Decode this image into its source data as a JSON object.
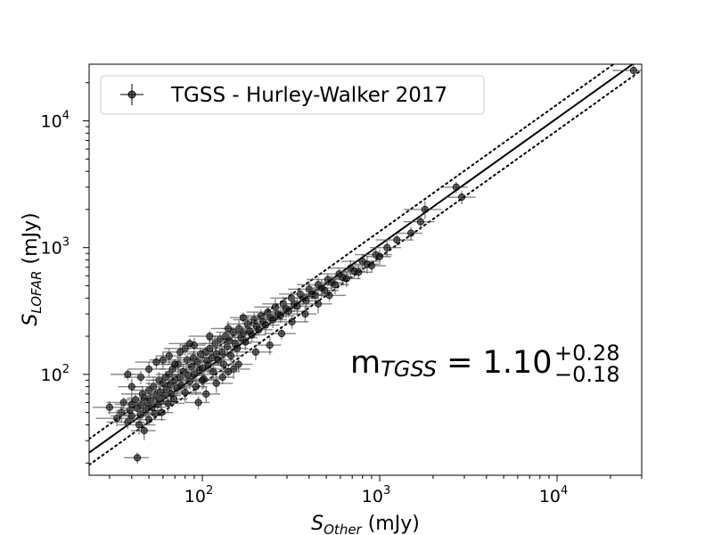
{
  "chart_data": {
    "type": "scatter",
    "xscale": "log",
    "yscale": "log",
    "xlim": [
      23,
      30000
    ],
    "ylim": [
      16,
      28000
    ],
    "xlabel": {
      "main": "S",
      "sub": "Other",
      "unit": " (mJy)"
    },
    "ylabel": {
      "main": "S",
      "sub": "LOFAR",
      "unit": " (mJy)"
    },
    "x_ticks": [
      {
        "base": "10",
        "exp": "2",
        "value": 100
      },
      {
        "base": "10",
        "exp": "3",
        "value": 1000
      },
      {
        "base": "10",
        "exp": "4",
        "value": 10000
      }
    ],
    "y_ticks": [
      {
        "base": "10",
        "exp": "2",
        "value": 100
      },
      {
        "base": "10",
        "exp": "3",
        "value": 1000
      },
      {
        "base": "10",
        "exp": "4",
        "value": 10000
      }
    ],
    "legend": {
      "position": "upper-left",
      "label": "TGSS - Hurley-Walker 2017"
    },
    "annotation": {
      "main": "m",
      "sub": "TGSS",
      "eq": " = 1.10",
      "sup": "+0.28",
      "subscr": "−0.18"
    },
    "fit_lines": [
      {
        "style": "solid",
        "slope": 1.1
      },
      {
        "style": "dotted",
        "slope": 1.28
      },
      {
        "style": "dotted",
        "slope": 0.92
      }
    ],
    "series": [
      {
        "marker_color": "#000000",
        "points": [
          [
            43,
            22
          ],
          [
            30,
            55
          ],
          [
            33,
            45
          ],
          [
            35,
            50
          ],
          [
            36,
            60
          ],
          [
            38,
            42
          ],
          [
            39,
            52
          ],
          [
            40,
            58
          ],
          [
            40,
            47
          ],
          [
            42,
            63
          ],
          [
            43,
            54
          ],
          [
            44,
            40
          ],
          [
            45,
            57
          ],
          [
            45,
            48
          ],
          [
            46,
            70
          ],
          [
            47,
            36
          ],
          [
            47,
            65
          ],
          [
            48,
            52
          ],
          [
            49,
            59
          ],
          [
            50,
            75
          ],
          [
            50,
            44
          ],
          [
            51,
            62
          ],
          [
            52,
            55
          ],
          [
            53,
            80
          ],
          [
            54,
            49
          ],
          [
            55,
            67
          ],
          [
            56,
            58
          ],
          [
            57,
            90
          ],
          [
            58,
            72
          ],
          [
            58,
            61
          ],
          [
            59,
            50
          ],
          [
            60,
            85
          ],
          [
            61,
            68
          ],
          [
            62,
            95
          ],
          [
            63,
            76
          ],
          [
            64,
            59
          ],
          [
            65,
            100
          ],
          [
            66,
            83
          ],
          [
            67,
            70
          ],
          [
            68,
            110
          ],
          [
            69,
            64
          ],
          [
            70,
            90
          ],
          [
            72,
            78
          ],
          [
            73,
            120
          ],
          [
            75,
            95
          ],
          [
            76,
            82
          ],
          [
            78,
            105
          ],
          [
            80,
            72
          ],
          [
            82,
            130
          ],
          [
            83,
            98
          ],
          [
            85,
            88
          ],
          [
            87,
            115
          ],
          [
            89,
            135
          ],
          [
            90,
            100
          ],
          [
            92,
            80
          ],
          [
            94,
            125
          ],
          [
            96,
            108
          ],
          [
            98,
            145
          ],
          [
            100,
            112
          ],
          [
            102,
            92
          ],
          [
            104,
            150
          ],
          [
            106,
            128
          ],
          [
            108,
            118
          ],
          [
            110,
            160
          ],
          [
            113,
            135
          ],
          [
            115,
            105
          ],
          [
            118,
            175
          ],
          [
            120,
            145
          ],
          [
            123,
            130
          ],
          [
            126,
            190
          ],
          [
            129,
            150
          ],
          [
            132,
            120
          ],
          [
            135,
            200
          ],
          [
            138,
            165
          ],
          [
            142,
            185
          ],
          [
            145,
            140
          ],
          [
            149,
            215
          ],
          [
            153,
            175
          ],
          [
            157,
            160
          ],
          [
            161,
            230
          ],
          [
            165,
            195
          ],
          [
            170,
            210
          ],
          [
            175,
            180
          ],
          [
            180,
            250
          ],
          [
            185,
            220
          ],
          [
            190,
            205
          ],
          [
            196,
            270
          ],
          [
            202,
            240
          ],
          [
            208,
            225
          ],
          [
            214,
            290
          ],
          [
            220,
            260
          ],
          [
            227,
            245
          ],
          [
            234,
            310
          ],
          [
            242,
            280
          ],
          [
            250,
            270
          ],
          [
            258,
            340
          ],
          [
            267,
            300
          ],
          [
            276,
            290
          ],
          [
            286,
            360
          ],
          [
            296,
            330
          ],
          [
            307,
            315
          ],
          [
            318,
            400
          ],
          [
            330,
            360
          ],
          [
            343,
            345
          ],
          [
            356,
            430
          ],
          [
            370,
            400
          ],
          [
            385,
            380
          ],
          [
            400,
            470
          ],
          [
            416,
            430
          ],
          [
            433,
            420
          ],
          [
            450,
            510
          ],
          [
            470,
            480
          ],
          [
            490,
            460
          ],
          [
            510,
            560
          ],
          [
            535,
            530
          ],
          [
            560,
            510
          ],
          [
            590,
            620
          ],
          [
            620,
            580
          ],
          [
            650,
            570
          ],
          [
            685,
            690
          ],
          [
            720,
            650
          ],
          [
            760,
            640
          ],
          [
            800,
            780
          ],
          [
            850,
            740
          ],
          [
            900,
            720
          ],
          [
            950,
            880
          ],
          [
            1000,
            850
          ],
          [
            1100,
            1000
          ],
          [
            1250,
            1150
          ],
          [
            1500,
            1300
          ],
          [
            1700,
            1600
          ],
          [
            1800,
            2000
          ],
          [
            2700,
            3000
          ],
          [
            2900,
            2500
          ],
          [
            27000,
            25000
          ],
          [
            60,
            130
          ],
          [
            70,
            120
          ],
          [
            80,
            160
          ],
          [
            90,
            170
          ],
          [
            100,
            90
          ],
          [
            110,
            200
          ],
          [
            130,
            95
          ],
          [
            140,
            230
          ],
          [
            150,
            110
          ],
          [
            170,
            280
          ],
          [
            45,
            95
          ],
          [
            50,
            110
          ],
          [
            40,
            80
          ],
          [
            38,
            100
          ],
          [
            55,
            125
          ],
          [
            65,
            140
          ],
          [
            75,
            150
          ],
          [
            85,
            175
          ],
          [
            95,
            60
          ],
          [
            105,
            70
          ],
          [
            120,
            85
          ],
          [
            140,
            105
          ],
          [
            160,
            120
          ],
          [
            200,
            150
          ],
          [
            240,
            170
          ],
          [
            280,
            210
          ],
          [
            320,
            260
          ],
          [
            380,
            300
          ],
          [
            450,
            360
          ],
          [
            520,
            420
          ]
        ]
      }
    ]
  }
}
